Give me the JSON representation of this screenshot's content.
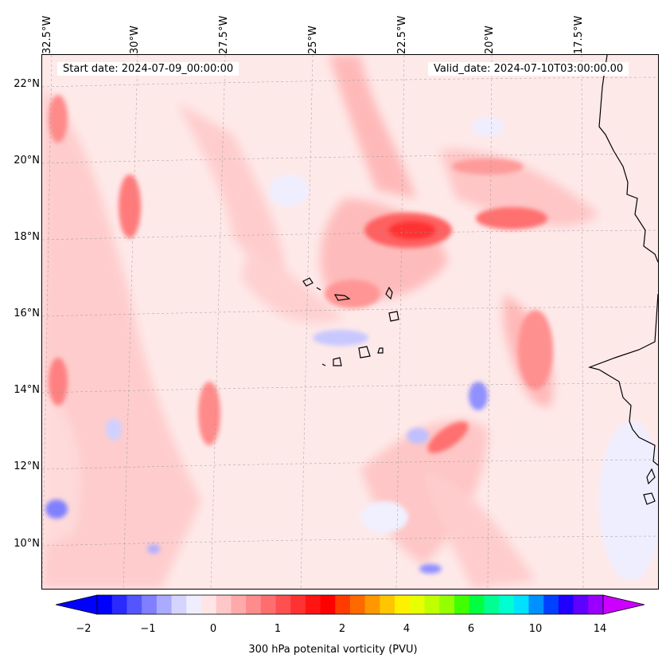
{
  "header": {
    "start_date": "Start date: 2024-07-09_00:00:00",
    "valid_date": "Valid_date: 2024-07-10T03:00:00.00"
  },
  "map": {
    "longitude_labels": [
      "32.5°W",
      "30°W",
      "27.5°W",
      "25°W",
      "22.5°W",
      "20°W",
      "17.5°W"
    ],
    "latitude_labels": [
      "22°N",
      "20°N",
      "18°N",
      "16°N",
      "14°N",
      "12°N",
      "10°N"
    ],
    "background_color": "#fee9e9",
    "positive_color": "#ff5a5a",
    "negative_color": "#6e6eff",
    "coastline_color": "#000000",
    "gridlines": true
  },
  "colorbar": {
    "label": "300 hPa potenital vorticity (PVU)",
    "tick_labels": [
      "−2",
      "−1",
      "0",
      "1",
      "2",
      "4",
      "6",
      "10",
      "14"
    ],
    "colors": [
      "#0000ff",
      "#2a2aff",
      "#5555ff",
      "#7f7fff",
      "#aaaaff",
      "#d4d4ff",
      "#eeeeff",
      "#ffe5e5",
      "#ffc8c8",
      "#ffaaaa",
      "#ff8c8c",
      "#ff6e6e",
      "#ff5050",
      "#ff3232",
      "#ff1414",
      "#ff0000",
      "#ff3c00",
      "#ff6a00",
      "#ff9800",
      "#ffc600",
      "#fff000",
      "#e8ff00",
      "#c0ff00",
      "#94ff00",
      "#40ff00",
      "#00ff40",
      "#00ff90",
      "#00ffd0",
      "#00e0ff",
      "#0090ff",
      "#0040ff",
      "#2000ff",
      "#6000ff",
      "#9a00ff"
    ],
    "extend_min_color": "#0000ff",
    "extend_max_color": "#cc00ff"
  }
}
